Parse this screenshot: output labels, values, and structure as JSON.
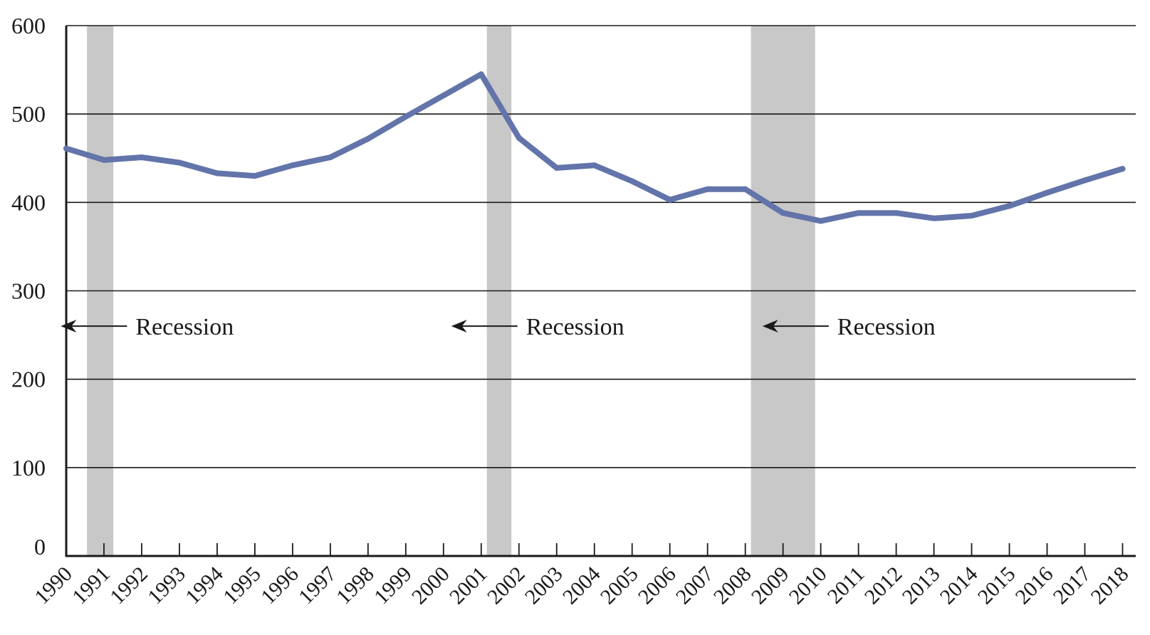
{
  "chart_data": {
    "type": "line",
    "title": "",
    "xlabel": "",
    "ylabel": "",
    "x": [
      1990,
      1991,
      1992,
      1993,
      1994,
      1995,
      1996,
      1997,
      1998,
      1999,
      2000,
      2001,
      2002,
      2003,
      2004,
      2005,
      2006,
      2007,
      2008,
      2009,
      2010,
      2011,
      2012,
      2013,
      2014,
      2015,
      2016,
      2017,
      2018
    ],
    "x_tick_labels": [
      "1990",
      "1991",
      "1992",
      "1993",
      "1994",
      "1995",
      "1996",
      "1997",
      "1998",
      "1999",
      "2000",
      "2001",
      "2002",
      "2003",
      "2004",
      "2005",
      "2006",
      "2007",
      "2008",
      "2009",
      "2010",
      "2011",
      "2012",
      "2013",
      "2014",
      "2015",
      "2016",
      "2017",
      "2018"
    ],
    "xlim": [
      1990,
      2018.35
    ],
    "ylim": [
      0,
      600
    ],
    "y_ticks": [
      0,
      100,
      200,
      300,
      400,
      500,
      600
    ],
    "y_tick_labels": [
      "0",
      "100",
      "200",
      "300",
      "400",
      "500",
      "600"
    ],
    "grid": "horizontal",
    "series": [
      {
        "color": "#6274aa",
        "x": [
          1990,
          1991,
          1992,
          1993,
          1994,
          1995,
          1996,
          1997,
          1998,
          1999,
          2000,
          2001,
          2002,
          2003,
          2004,
          2005,
          2006,
          2007,
          2008,
          2009,
          2010,
          2011,
          2012,
          2013,
          2014,
          2015,
          2016,
          2017,
          2018
        ],
        "values": [
          461,
          448,
          451,
          445,
          433,
          430,
          442,
          451,
          472,
          497,
          521,
          545,
          473,
          439,
          442,
          424,
          403,
          415,
          415,
          388,
          379,
          388,
          388,
          382,
          385,
          396,
          411,
          425,
          438
        ]
      }
    ],
    "recession_color": "#c8c8c8",
    "recessions": [
      {
        "start": 1990.55,
        "end": 1991.25
      },
      {
        "start": 2001.15,
        "end": 2001.8
      },
      {
        "start": 2008.15,
        "end": 2009.85
      }
    ],
    "annotations": [
      {
        "text": "Recession",
        "x": 1991.8,
        "y": 252
      },
      {
        "text": "Recession",
        "x": 2002.15,
        "y": 252
      },
      {
        "text": "Recession",
        "x": 2010.4,
        "y": 252
      }
    ]
  }
}
